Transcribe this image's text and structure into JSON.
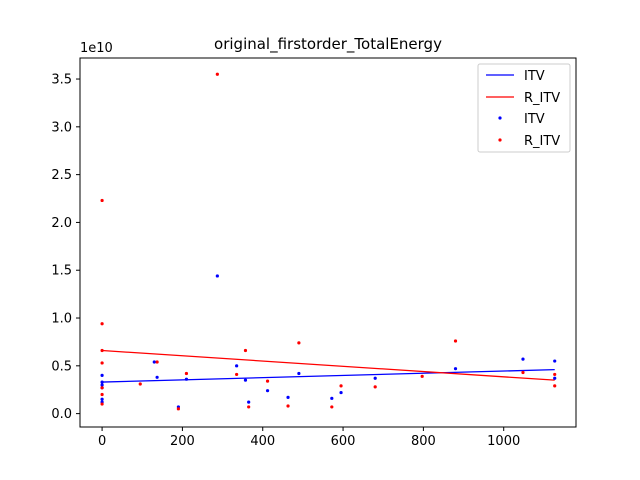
{
  "chart_data": {
    "type": "scatter",
    "title": "original_firstorder_TotalEnergy",
    "xlabel": "",
    "ylabel": "",
    "offset_label": "1e10",
    "xlim": [
      -55,
      1180
    ],
    "ylim": [
      -0.14,
      3.72
    ],
    "xticks": [
      0,
      200,
      400,
      600,
      800,
      1000
    ],
    "yticks": [
      0.0,
      0.5,
      1.0,
      1.5,
      2.0,
      2.5,
      3.0,
      3.5
    ],
    "ytick_labels": [
      "0.0",
      "0.5",
      "1.0",
      "1.5",
      "2.0",
      "2.5",
      "3.0",
      "3.5"
    ],
    "grid": false,
    "legend": {
      "placement": "top-right",
      "entries": [
        {
          "label": "ITV",
          "kind": "line",
          "color": "#0000ff"
        },
        {
          "label": "R_ITV",
          "kind": "line",
          "color": "#ff0000"
        },
        {
          "label": "ITV",
          "kind": "marker",
          "color": "#0000ff"
        },
        {
          "label": "R_ITV",
          "kind": "marker",
          "color": "#ff0000"
        }
      ]
    },
    "series": [
      {
        "kind": "line",
        "color": "#0000ff",
        "x": [
          0,
          1127
        ],
        "y": [
          0.33,
          0.46
        ]
      },
      {
        "kind": "line",
        "color": "#ff0000",
        "x": [
          0,
          1127
        ],
        "y": [
          0.66,
          0.35
        ]
      },
      {
        "kind": "scatter",
        "color": "#0000ff",
        "points": [
          [
            0,
            0.4
          ],
          [
            0,
            0.33
          ],
          [
            0,
            0.3
          ],
          [
            0,
            0.27
          ],
          [
            0,
            0.15
          ],
          [
            0,
            0.12
          ],
          [
            130,
            0.54
          ],
          [
            137,
            0.38
          ],
          [
            190,
            0.07
          ],
          [
            210,
            0.36
          ],
          [
            287,
            1.44
          ],
          [
            335,
            0.5
          ],
          [
            357,
            0.35
          ],
          [
            365,
            0.12
          ],
          [
            412,
            0.24
          ],
          [
            463,
            0.17
          ],
          [
            490,
            0.42
          ],
          [
            572,
            0.16
          ],
          [
            595,
            0.22
          ],
          [
            680,
            0.37
          ],
          [
            880,
            0.47
          ],
          [
            1048,
            0.57
          ],
          [
            1127,
            0.55
          ],
          [
            1127,
            0.37
          ]
        ]
      },
      {
        "kind": "scatter",
        "color": "#ff0000",
        "points": [
          [
            0,
            2.23
          ],
          [
            0,
            0.94
          ],
          [
            0,
            0.66
          ],
          [
            0,
            0.53
          ],
          [
            0,
            0.27
          ],
          [
            0,
            0.2
          ],
          [
            0,
            0.1
          ],
          [
            95,
            0.31
          ],
          [
            137,
            0.54
          ],
          [
            190,
            0.05
          ],
          [
            210,
            0.42
          ],
          [
            287,
            3.55
          ],
          [
            335,
            0.41
          ],
          [
            357,
            0.66
          ],
          [
            365,
            0.07
          ],
          [
            412,
            0.34
          ],
          [
            463,
            0.08
          ],
          [
            490,
            0.74
          ],
          [
            572,
            0.07
          ],
          [
            595,
            0.29
          ],
          [
            680,
            0.28
          ],
          [
            797,
            0.39
          ],
          [
            880,
            0.76
          ],
          [
            1048,
            0.43
          ],
          [
            1127,
            0.41
          ],
          [
            1127,
            0.29
          ]
        ]
      }
    ]
  }
}
